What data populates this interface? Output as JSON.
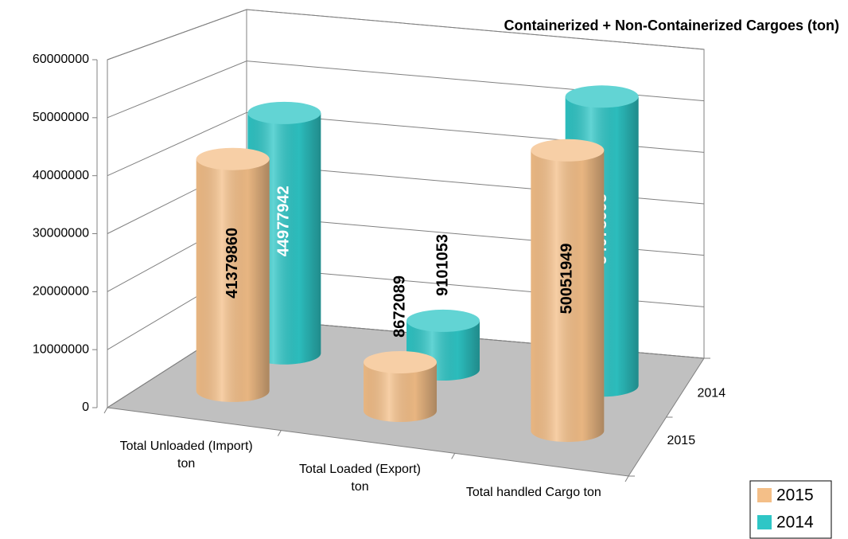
{
  "chart_data": {
    "type": "bar3d",
    "title": "Containerized + Non-Containerized Cargoes (ton)",
    "categories": [
      "Total Unloaded (Import) ton",
      "Total Loaded (Export) ton",
      "Total handled Cargo ton"
    ],
    "series": [
      {
        "name": "2015",
        "color": "#f4bf88",
        "values": [
          41379860,
          8672089,
          50051949
        ]
      },
      {
        "name": "2014",
        "color": "#2ec6c6",
        "values": [
          44977942,
          9101053,
          54078995
        ]
      }
    ],
    "ylim": [
      0,
      60000000
    ],
    "yticks": [
      0,
      10000000,
      20000000,
      30000000,
      40000000,
      50000000,
      60000000
    ],
    "grid": true,
    "legend": "bottom-right"
  }
}
